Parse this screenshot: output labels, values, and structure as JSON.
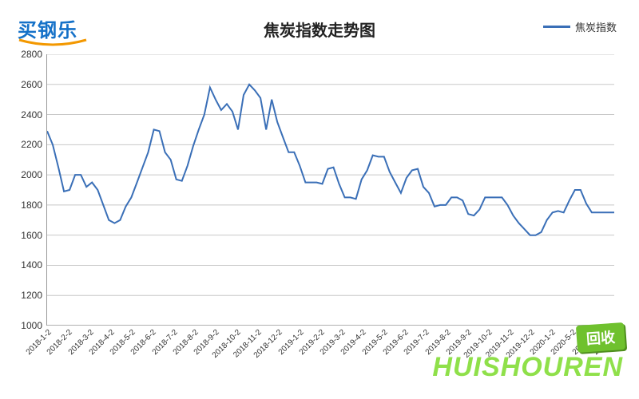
{
  "logo": {
    "text_a": "买钢",
    "text_b": "乐",
    "color": "#1571c8",
    "underline_color": "#f39800"
  },
  "title": {
    "text": "焦炭指数走势图",
    "fontsize": 20,
    "color": "#222222"
  },
  "legend": {
    "label": "焦炭指数",
    "color": "#3a6fb7"
  },
  "watermark": {
    "main": "HUISHOUREN",
    "badge": "回收",
    "color": "#8fe04a",
    "badge_bg": "#6fc12e"
  },
  "chart": {
    "type": "line",
    "background_color": "#ffffff",
    "grid_color": "#c8c8c8",
    "axis_color": "#999999",
    "line_color": "#3a6fb7",
    "line_width": 2,
    "ylim": [
      1000,
      2800
    ],
    "ytick_step": 200,
    "yticks": [
      1000,
      1200,
      1400,
      1600,
      1800,
      2000,
      2200,
      2400,
      2600,
      2800
    ],
    "xtick_rotation": -45,
    "xtick_fontsize": 10,
    "ytick_fontsize": 12,
    "x_labels": [
      "2018-1-2",
      "2018-2-2",
      "2018-3-2",
      "2018-4-2",
      "2018-5-2",
      "2018-6-2",
      "2018-7-2",
      "2018-8-2",
      "2018-9-2",
      "2018-10-2",
      "2018-11-2",
      "2018-12-2",
      "2019-1-2",
      "2019-2-2",
      "2019-3-2",
      "2019-4-2",
      "2019-5-2",
      "2019-6-2",
      "2019-7-2",
      "2019-8-2",
      "2019-9-2",
      "2019-10-2",
      "2019-11-2",
      "2019-12-2",
      "2020-1-2",
      "2020-5-2",
      "2020-7-2",
      "2020-1-2"
    ],
    "series": [
      {
        "name": "焦炭指数",
        "color": "#3a6fb7",
        "values": [
          2290,
          2200,
          2050,
          1890,
          1900,
          2000,
          2000,
          1920,
          1950,
          1900,
          1800,
          1700,
          1680,
          1700,
          1790,
          1850,
          1950,
          2050,
          2150,
          2300,
          2290,
          2150,
          2100,
          1970,
          1960,
          2060,
          2190,
          2300,
          2400,
          2580,
          2500,
          2430,
          2470,
          2420,
          2300,
          2530,
          2600,
          2560,
          2510,
          2300,
          2500,
          2350,
          2250,
          2150,
          2150,
          2060,
          1950,
          1950,
          1950,
          1940,
          2040,
          2050,
          1940,
          1850,
          1850,
          1840,
          1970,
          2030,
          2130,
          2120,
          2120,
          2020,
          1950,
          1880,
          1980,
          2030,
          2040,
          1920,
          1880,
          1790,
          1800,
          1800,
          1850,
          1850,
          1830,
          1740,
          1730,
          1770,
          1850,
          1850,
          1850,
          1850,
          1800,
          1730,
          1680,
          1640,
          1600,
          1600,
          1620,
          1700,
          1750,
          1760,
          1750,
          1830,
          1900,
          1900,
          1810,
          1750,
          1750,
          1750,
          1750,
          1750
        ]
      }
    ]
  }
}
